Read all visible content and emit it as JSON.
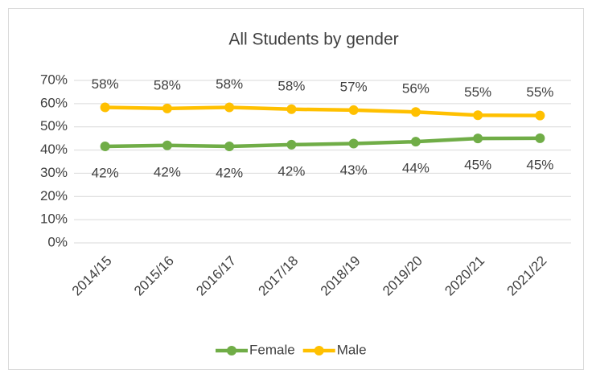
{
  "chart_data": {
    "type": "line",
    "title": "All Students by gender",
    "categories": [
      "2014/15",
      "2015/16",
      "2016/17",
      "2017/18",
      "2018/19",
      "2019/20",
      "2020/21",
      "2021/22"
    ],
    "series": [
      {
        "name": "Female",
        "color": "#70ad47",
        "values": [
          41.6,
          42,
          41.6,
          42.3,
          42.8,
          43.6,
          45,
          45.1
        ],
        "value_labels": [
          "42%",
          "42%",
          "42%",
          "42%",
          "43%",
          "44%",
          "45%",
          "45%"
        ]
      },
      {
        "name": "Male",
        "color": "#ffc000",
        "values": [
          58.4,
          57.9,
          58.4,
          57.6,
          57.2,
          56.4,
          55,
          54.9
        ],
        "value_labels": [
          "58%",
          "58%",
          "58%",
          "58%",
          "57%",
          "56%",
          "55%",
          "55%"
        ]
      }
    ],
    "ylim": [
      0,
      70
    ],
    "yticks": [
      {
        "value": 0,
        "label": "0%"
      },
      {
        "value": 10,
        "label": "10%"
      },
      {
        "value": 20,
        "label": "20%"
      },
      {
        "value": 30,
        "label": "30%"
      },
      {
        "value": 40,
        "label": "40%"
      },
      {
        "value": 50,
        "label": "50%"
      },
      {
        "value": 60,
        "label": "60%"
      },
      {
        "value": 70,
        "label": "70%"
      }
    ],
    "grid": true,
    "legend": "bottom"
  }
}
